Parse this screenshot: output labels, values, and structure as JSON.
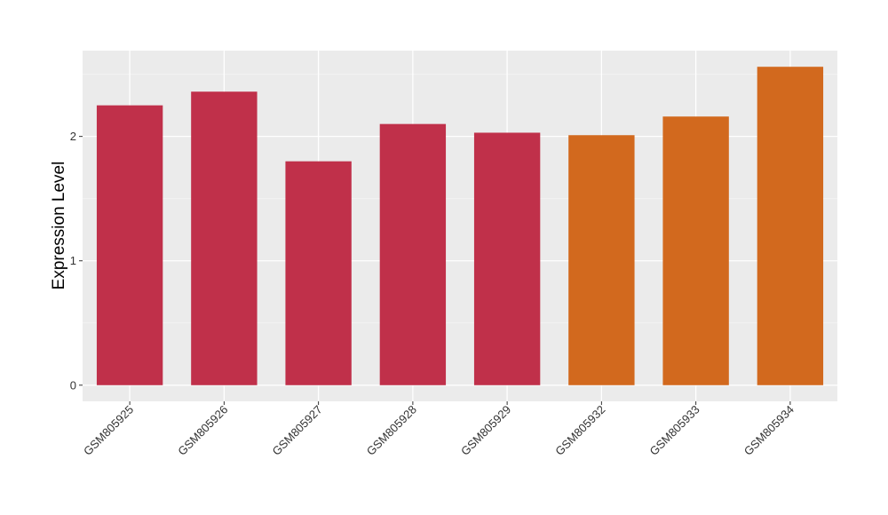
{
  "chart_data": {
    "type": "bar",
    "title": "",
    "xlabel": "",
    "ylabel": "Expression Level",
    "categories": [
      "GSM805925",
      "GSM805926",
      "GSM805927",
      "GSM805928",
      "GSM805929",
      "GSM805932",
      "GSM805933",
      "GSM805934"
    ],
    "values": [
      2.25,
      2.36,
      1.8,
      2.1,
      2.03,
      2.01,
      2.16,
      2.56
    ],
    "bar_colors": [
      "#c0304a",
      "#c0304a",
      "#c0304a",
      "#c0304a",
      "#c0304a",
      "#d2691e",
      "#d2691e",
      "#d2691e"
    ],
    "yticks": [
      0,
      1,
      2
    ],
    "ylim": [
      -0.13,
      2.69
    ],
    "grid": true,
    "legend": "none"
  }
}
